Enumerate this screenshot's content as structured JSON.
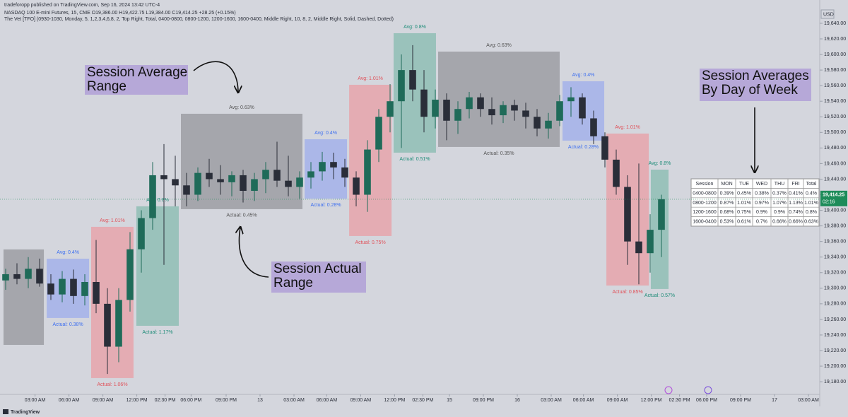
{
  "header": {
    "publisher": "tradeforopp published on TradingView.com, Sep 16, 2024 13:42 UTC-4",
    "symbol_line": "NASDAQ 100 E-mini Futures, 15, CME  O19,386.00  H19,422.75  L19,384.00  C19,414.25  +28.25 (+0.15%)",
    "indicator_line": "The Vet [TFO] (0930-1030, Monday, 5, 1,2,3,4,6,8, 2, Top Right, Total, 0400-0800, 0800-1200, 1200-1600, 1600-0400, Middle Right, 10, 8, 2, Middle Right, Solid, Dashed, Dotted)",
    "currency": "USD",
    "brand": "TradingView"
  },
  "chart_data": {
    "type": "candlestick",
    "grid": false,
    "up_color": "#1f6b59",
    "down_color": "#2a2e39",
    "xlim": [
      -0.5,
      72
    ],
    "ylim": [
      19154.7,
      19657.2
    ],
    "x": [
      0,
      1,
      2,
      3,
      4,
      5,
      6,
      7,
      8,
      9,
      10,
      11,
      12,
      13,
      14,
      15,
      16,
      17,
      18,
      19,
      20,
      21,
      22,
      23,
      24,
      25,
      26,
      27,
      28,
      29,
      30,
      31,
      32,
      33,
      34,
      35,
      36,
      37,
      38,
      39,
      40,
      41,
      42,
      43,
      44,
      45,
      46,
      47,
      48,
      49,
      50,
      51,
      52,
      53,
      54,
      55,
      56,
      57,
      58
    ],
    "open": [
      19310,
      19318,
      19312,
      19325,
      19306,
      19292,
      19312,
      19290,
      19308,
      19280,
      19225,
      19285,
      19350,
      19390,
      19445,
      19440,
      19432,
      19420,
      19448,
      19440,
      19436,
      19445,
      19425,
      19440,
      19452,
      19438,
      19430,
      19442,
      19450,
      19462,
      19455,
      19442,
      19420,
      19478,
      19520,
      19540,
      19580,
      19555,
      19520,
      19542,
      19515,
      19530,
      19545,
      19530,
      19522,
      19535,
      19528,
      19520,
      19505,
      19515,
      19540,
      19545,
      19518,
      19495,
      19465,
      19430,
      19360,
      19345,
      19375
    ],
    "high": [
      19325,
      19332,
      19340,
      19338,
      19318,
      19322,
      19324,
      19318,
      19362,
      19300,
      19300,
      19372,
      19400,
      19462,
      19485,
      19470,
      19448,
      19455,
      19466,
      19458,
      19450,
      19452,
      19448,
      19462,
      19488,
      19470,
      19450,
      19462,
      19475,
      19474,
      19466,
      19450,
      19490,
      19530,
      19562,
      19600,
      19612,
      19580,
      19555,
      19550,
      19540,
      19552,
      19550,
      19545,
      19540,
      19542,
      19538,
      19530,
      19525,
      19548,
      19558,
      19550,
      19528,
      19500,
      19478,
      19445,
      19460,
      19395,
      19420
    ],
    "low": [
      19298,
      19305,
      19300,
      19302,
      19285,
      19282,
      19280,
      19278,
      19268,
      19190,
      19205,
      19270,
      19320,
      19375,
      19330,
      19405,
      19405,
      19412,
      19430,
      19420,
      19418,
      19410,
      19412,
      19422,
      19430,
      19418,
      19415,
      19428,
      19438,
      19440,
      19430,
      19405,
      19398,
      19462,
      19500,
      19480,
      19540,
      19500,
      19505,
      19490,
      19498,
      19518,
      19520,
      19510,
      19512,
      19515,
      19505,
      19495,
      19492,
      19508,
      19520,
      19510,
      19485,
      19455,
      19420,
      19330,
      19305,
      19320,
      19340
    ],
    "close": [
      19318,
      19312,
      19325,
      19306,
      19292,
      19312,
      19290,
      19308,
      19280,
      19225,
      19285,
      19350,
      19390,
      19445,
      19440,
      19432,
      19420,
      19448,
      19440,
      19436,
      19445,
      19425,
      19440,
      19452,
      19438,
      19430,
      19442,
      19450,
      19462,
      19455,
      19442,
      19420,
      19478,
      19520,
      19540,
      19580,
      19555,
      19520,
      19542,
      19515,
      19530,
      19545,
      19530,
      19522,
      19535,
      19528,
      19520,
      19505,
      19515,
      19540,
      19545,
      19518,
      19495,
      19465,
      19430,
      19360,
      19345,
      19375,
      19414.25
    ],
    "last": {
      "value": 19414.25,
      "label": "19,414.25",
      "countdown": "02:16",
      "color": "#1e8c5a"
    },
    "yticks": [
      {
        "value": 19640,
        "label": "19,640.00"
      },
      {
        "value": 19620,
        "label": "19,620.00"
      },
      {
        "value": 19600,
        "label": "19,600.00"
      },
      {
        "value": 19580,
        "label": "19,580.00"
      },
      {
        "value": 19560,
        "label": "19,560.00"
      },
      {
        "value": 19540,
        "label": "19,540.00"
      },
      {
        "value": 19520,
        "label": "19,520.00"
      },
      {
        "value": 19500,
        "label": "19,500.00"
      },
      {
        "value": 19480,
        "label": "19,480.00"
      },
      {
        "value": 19460,
        "label": "19,460.00"
      },
      {
        "value": 19440,
        "label": "19,440.00"
      },
      {
        "value": 19420,
        "label": "19,420.00"
      },
      {
        "value": 19400,
        "label": "19,400.00"
      },
      {
        "value": 19380,
        "label": "19,380.00"
      },
      {
        "value": 19360,
        "label": "19,360.00"
      },
      {
        "value": 19340,
        "label": "19,340.00"
      },
      {
        "value": 19320,
        "label": "19,320.00"
      },
      {
        "value": 19300,
        "label": "19,300.00"
      },
      {
        "value": 19280,
        "label": "19,280.00"
      },
      {
        "value": 19260,
        "label": "19,260.00"
      },
      {
        "value": 19240,
        "label": "19,240.00"
      },
      {
        "value": 19220,
        "label": "19,220.00"
      },
      {
        "value": 19200,
        "label": "19,200.00"
      },
      {
        "value": 19180,
        "label": "19,180.00"
      }
    ],
    "xticks": [
      {
        "value": 2.6,
        "label": "03:00 AM"
      },
      {
        "value": 5.6,
        "label": "06:00 AM"
      },
      {
        "value": 8.6,
        "label": "09:00 AM"
      },
      {
        "value": 11.6,
        "label": "12:00 PM"
      },
      {
        "value": 14.1,
        "label": "02:30 PM"
      },
      {
        "value": 16.4,
        "label": "06:00 PM"
      },
      {
        "value": 19.5,
        "label": "09:00 PM"
      },
      {
        "value": 22.5,
        "label": "13"
      },
      {
        "value": 25.5,
        "label": "03:00 AM"
      },
      {
        "value": 28.4,
        "label": "06:00 AM"
      },
      {
        "value": 31.4,
        "label": "09:00 AM"
      },
      {
        "value": 34.4,
        "label": "12:00 PM"
      },
      {
        "value": 36.9,
        "label": "02:30 PM"
      },
      {
        "value": 39.25,
        "label": "15"
      },
      {
        "value": 42.25,
        "label": "09:00 PM"
      },
      {
        "value": 45.25,
        "label": "16"
      },
      {
        "value": 48.25,
        "label": "03:00 AM"
      },
      {
        "value": 51.1,
        "label": "06:00 AM"
      },
      {
        "value": 54.1,
        "label": "09:00 AM"
      },
      {
        "value": 57.1,
        "label": "12:00 PM"
      },
      {
        "value": 59.6,
        "label": "02:30 PM"
      },
      {
        "value": 62,
        "label": "06:00 PM"
      },
      {
        "value": 65,
        "label": "09:00 PM"
      },
      {
        "value": 68,
        "label": "17"
      },
      {
        "value": 71,
        "label": "03:00 AM"
      }
    ],
    "sessions": [
      {
        "start": -0.19,
        "end": 3.38,
        "high": 19349.8,
        "low": 19227.3,
        "color": "#9c9ea3",
        "label_color": "#555"
      },
      {
        "start": 3.63,
        "end": 7.38,
        "high": 19337.9,
        "low": 19261.8,
        "color": "#a3b2ea",
        "label_color": "#3d6ff0",
        "avg": "Avg: 0.4%",
        "actual": "Actual: 0.38%"
      },
      {
        "start": 7.56,
        "end": 11.31,
        "high": 19378.8,
        "low": 19184.7,
        "color": "#e6a4ac",
        "label_color": "#e0525a",
        "avg": "Avg: 1.01%",
        "actual": "Actual: 1.06%"
      },
      {
        "start": 11.56,
        "end": 15.31,
        "high": 19405.1,
        "low": 19251.8,
        "color": "#8fbeb5",
        "label_color": "#1e8c78",
        "avg": "Avg: 0.8%",
        "actual": "Actual: 1.17%"
      },
      {
        "start": 15.5,
        "end": 26.25,
        "high": 19523.9,
        "low": 19401.5,
        "color": "#9c9ea3",
        "label_color": "#555",
        "avg": "Avg: 0.63%",
        "actual": "Actual: 0.45%"
      },
      {
        "start": 26.44,
        "end": 30.19,
        "high": 19491.2,
        "low": 19415,
        "color": "#a3b2ea",
        "label_color": "#3d6ff0",
        "avg": "Avg: 0.4%",
        "actual": "Actual: 0.28%"
      },
      {
        "start": 30.38,
        "end": 34.13,
        "high": 19561.1,
        "low": 19367,
        "color": "#e6a4ac",
        "label_color": "#e0525a",
        "avg": "Avg: 1.01%",
        "actual": "Actual: 0.75%"
      },
      {
        "start": 34.31,
        "end": 38.06,
        "high": 19627.3,
        "low": 19474,
        "color": "#8fbeb5",
        "label_color": "#1e8c78",
        "avg": "Avg: 0.8%",
        "actual": "Actual: 0.51%"
      },
      {
        "start": 38.25,
        "end": 49,
        "high": 19603.7,
        "low": 19481.3,
        "color": "#9c9ea3",
        "label_color": "#555",
        "avg": "Avg: 0.63%",
        "actual": "Actual: 0.35%"
      },
      {
        "start": 49.25,
        "end": 52.94,
        "high": 19565.6,
        "low": 19489.4,
        "color": "#a3b2ea",
        "label_color": "#3d6ff0",
        "avg": "Avg: 0.4%",
        "actual": "Actual: 0.28%"
      },
      {
        "start": 53.13,
        "end": 56.88,
        "high": 19498.5,
        "low": 19303.5,
        "color": "#e6a4ac",
        "label_color": "#e0525a",
        "avg": "Avg: 1.01%",
        "actual": "Actual: 0.85%"
      },
      {
        "start": 57.06,
        "end": 58.63,
        "high": 19452.2,
        "low": 19299,
        "color": "#8fbeb5",
        "label_color": "#1e8c78",
        "avg": "Avg: 0.8%",
        "actual": "Actual: 0.57%"
      }
    ],
    "annotations": [
      {
        "lines": [
          "Session Average",
          "Range"
        ]
      },
      {
        "lines": [
          "Session Actual",
          "Range"
        ]
      },
      {
        "lines": [
          "Session Averages",
          "By Day of Week"
        ]
      }
    ]
  },
  "table": {
    "header": [
      "Session",
      "MON",
      "TUE",
      "WED",
      "THU",
      "FRI",
      "Total"
    ],
    "rows": [
      [
        "0400-0800",
        "0.39%",
        "0.45%",
        "0.38%",
        "0.37%",
        "0.41%",
        "0.4%"
      ],
      [
        "0800-1200",
        "0.87%",
        "1.01%",
        "0.97%",
        "1.07%",
        "1.13%",
        "1.01%"
      ],
      [
        "1200-1600",
        "0.68%",
        "0.75%",
        "0.9%",
        "0.9%",
        "0.74%",
        "0.8%"
      ],
      [
        "1600-0400",
        "0.53%",
        "0.61%",
        "0.7%",
        "0.66%",
        "0.66%",
        "0.63%"
      ]
    ]
  }
}
